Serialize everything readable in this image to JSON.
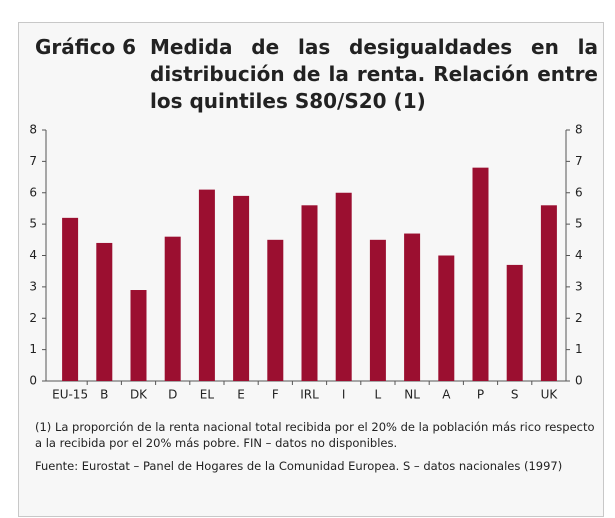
{
  "chart_data": {
    "type": "bar",
    "label": "Gráfico 6",
    "title": "Medida de las desigualdades en la distribución de la renta. Relación entre los quintiles S80/S20 (1)",
    "categories": [
      "EU-15",
      "B",
      "DK",
      "D",
      "EL",
      "E",
      "F",
      "IRL",
      "I",
      "L",
      "NL",
      "A",
      "P",
      "S",
      "UK"
    ],
    "values": [
      5.2,
      4.4,
      2.9,
      4.6,
      6.1,
      5.9,
      4.5,
      5.6,
      6.0,
      4.5,
      4.7,
      4.0,
      6.8,
      3.7,
      5.6
    ],
    "color": "#9b0f30",
    "ylim": [
      0,
      8
    ],
    "yticks": [
      0,
      1,
      2,
      3,
      4,
      5,
      6,
      7,
      8
    ],
    "y2lim": [
      0,
      8
    ],
    "y2ticks": [
      0,
      1,
      2,
      3,
      4,
      5,
      6,
      7,
      8
    ],
    "grid": false,
    "note": "(1) La proporción de la renta nacional total recibida por el 20% de la población más rico respecto a la recibida por el 20% más pobre. FIN – datos no disponibles.",
    "source_label": "Fuente:",
    "source": "Eurostat – Panel de Hogares de la Comunidad Europea. S – datos nacionales (1997)"
  }
}
